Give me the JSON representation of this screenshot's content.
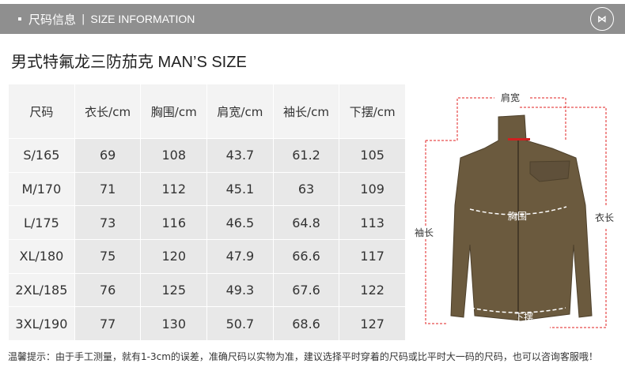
{
  "header": {
    "cn": "尺码信息",
    "sep": "|",
    "en": "SIZE INFORMATION",
    "logo": "M"
  },
  "title": "男式特氟龙三防茄克  MAN’S SIZE",
  "table": {
    "columns": [
      "尺码",
      "衣长/cm",
      "胸围/cm",
      "肩宽/cm",
      "袖长/cm",
      "下摆/cm"
    ],
    "rows": [
      [
        "S/165",
        "69",
        "108",
        "43.7",
        "61.2",
        "105"
      ],
      [
        "M/170",
        "71",
        "112",
        "45.1",
        "63",
        "109"
      ],
      [
        "L/175",
        "73",
        "116",
        "46.5",
        "64.8",
        "113"
      ],
      [
        "XL/180",
        "75",
        "120",
        "47.9",
        "66.6",
        "117"
      ],
      [
        "2XL/185",
        "76",
        "125",
        "49.3",
        "67.6",
        "122"
      ],
      [
        "3XL/190",
        "77",
        "130",
        "50.7",
        "68.6",
        "127"
      ]
    ]
  },
  "figure": {
    "shoulder": "肩宽",
    "chest": "胸围",
    "length": "衣长",
    "sleeve": "袖长",
    "hem": "下摆",
    "jacket_color": "#6b5a3e",
    "guide_color": "#e02020"
  },
  "note": "温馨提示：由于手工测量，就有1-3cm的误差，准确尺码以实物为准，建议选择平时穿着的尺码或比平时大一码的尺码，也可以咨询客服哦！"
}
